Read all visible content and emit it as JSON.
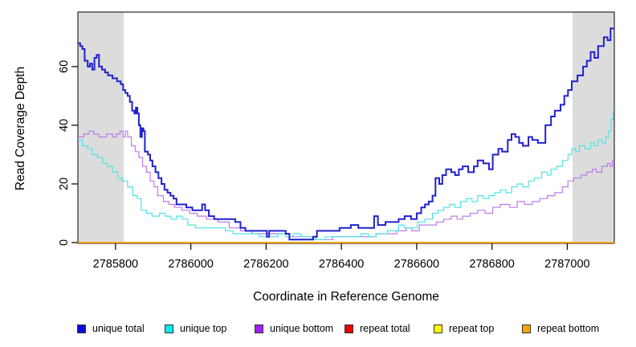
{
  "chart_data": {
    "type": "line",
    "subtype": "step",
    "title": "",
    "xlabel": "Coordinate in Reference Genome",
    "ylabel": "Read Coverage Depth",
    "xlim": [
      2785700,
      2787125
    ],
    "ylim": [
      0,
      78.6
    ],
    "xticks": [
      2785800,
      2786000,
      2786200,
      2786400,
      2786600,
      2786800,
      2787000
    ],
    "yticks": [
      0,
      20,
      40,
      60
    ],
    "grid": false,
    "legend_position": "bottom",
    "colors": {
      "background": "#FFFFFF",
      "frame": "#000000",
      "tick_text": "#000000",
      "shaded_band": "#DCDCDC"
    },
    "shaded_regions": [
      {
        "x0": 2785700,
        "x1": 2785822
      },
      {
        "x0": 2787014,
        "x1": 2787125
      }
    ],
    "series": [
      {
        "name": "unique total",
        "color": "#2121CE",
        "legend_color": "#0B0BDB",
        "width": 2,
        "points": [
          [
            2785700,
            68
          ],
          [
            2785706,
            67
          ],
          [
            2785712,
            66
          ],
          [
            2785718,
            62
          ],
          [
            2785726,
            60
          ],
          [
            2785732,
            61
          ],
          [
            2785738,
            59
          ],
          [
            2785744,
            63
          ],
          [
            2785750,
            64
          ],
          [
            2785756,
            60
          ],
          [
            2785764,
            59
          ],
          [
            2785772,
            58
          ],
          [
            2785780,
            57
          ],
          [
            2785792,
            56
          ],
          [
            2785804,
            55
          ],
          [
            2785814,
            54
          ],
          [
            2785820,
            52
          ],
          [
            2785826,
            51
          ],
          [
            2785832,
            50
          ],
          [
            2785838,
            48
          ],
          [
            2785844,
            45
          ],
          [
            2785850,
            44
          ],
          [
            2785854,
            46
          ],
          [
            2785858,
            44
          ],
          [
            2785862,
            40
          ],
          [
            2785866,
            36
          ],
          [
            2785870,
            39
          ],
          [
            2785874,
            38
          ],
          [
            2785878,
            31
          ],
          [
            2785886,
            30
          ],
          [
            2785892,
            28
          ],
          [
            2785898,
            26
          ],
          [
            2785906,
            24
          ],
          [
            2785914,
            22
          ],
          [
            2785922,
            20
          ],
          [
            2785930,
            18
          ],
          [
            2785938,
            17
          ],
          [
            2785946,
            16
          ],
          [
            2785954,
            15
          ],
          [
            2785962,
            13
          ],
          [
            2785988,
            12
          ],
          [
            2786004,
            11
          ],
          [
            2786030,
            13
          ],
          [
            2786038,
            11
          ],
          [
            2786048,
            9
          ],
          [
            2786062,
            8
          ],
          [
            2786118,
            7
          ],
          [
            2786132,
            5
          ],
          [
            2786145,
            4
          ],
          [
            2786196,
            4
          ],
          [
            2786202,
            2
          ],
          [
            2786208,
            4
          ],
          [
            2786252,
            3
          ],
          [
            2786262,
            1
          ],
          [
            2786325,
            2
          ],
          [
            2786335,
            4
          ],
          [
            2786395,
            5
          ],
          [
            2786425,
            6
          ],
          [
            2786445,
            5
          ],
          [
            2786470,
            5
          ],
          [
            2786487,
            9
          ],
          [
            2786497,
            6
          ],
          [
            2786517,
            7
          ],
          [
            2786552,
            8
          ],
          [
            2786568,
            9
          ],
          [
            2786585,
            8
          ],
          [
            2786600,
            10
          ],
          [
            2786612,
            12
          ],
          [
            2786622,
            13
          ],
          [
            2786632,
            14
          ],
          [
            2786642,
            16
          ],
          [
            2786650,
            22
          ],
          [
            2786660,
            20
          ],
          [
            2786668,
            23
          ],
          [
            2786678,
            25
          ],
          [
            2786692,
            24
          ],
          [
            2786702,
            23
          ],
          [
            2786712,
            25
          ],
          [
            2786722,
            26
          ],
          [
            2786737,
            24
          ],
          [
            2786752,
            26
          ],
          [
            2786762,
            28
          ],
          [
            2786777,
            27
          ],
          [
            2786792,
            25
          ],
          [
            2786802,
            30
          ],
          [
            2786817,
            32
          ],
          [
            2786827,
            31
          ],
          [
            2786842,
            35
          ],
          [
            2786852,
            37
          ],
          [
            2786862,
            36
          ],
          [
            2786872,
            34
          ],
          [
            2786882,
            33
          ],
          [
            2786897,
            36
          ],
          [
            2786907,
            35
          ],
          [
            2786922,
            34
          ],
          [
            2786942,
            40
          ],
          [
            2786957,
            43
          ],
          [
            2786967,
            45
          ],
          [
            2786982,
            47
          ],
          [
            2786992,
            50
          ],
          [
            2787002,
            52
          ],
          [
            2787012,
            55
          ],
          [
            2787027,
            57
          ],
          [
            2787042,
            60
          ],
          [
            2787052,
            62
          ],
          [
            2787062,
            65
          ],
          [
            2787072,
            63
          ],
          [
            2787082,
            67
          ],
          [
            2787097,
            70
          ],
          [
            2787107,
            69
          ],
          [
            2787115,
            73
          ],
          [
            2787125,
            73
          ]
        ]
      },
      {
        "name": "unique top",
        "color": "#4EE4E4",
        "legend_color": "#0EE8E8",
        "width": 1.2,
        "points": [
          [
            2785700,
            35
          ],
          [
            2785712,
            33
          ],
          [
            2785726,
            32
          ],
          [
            2785738,
            30
          ],
          [
            2785752,
            29
          ],
          [
            2785766,
            27
          ],
          [
            2785778,
            26
          ],
          [
            2785792,
            24
          ],
          [
            2785806,
            22
          ],
          [
            2785818,
            21
          ],
          [
            2785832,
            19
          ],
          [
            2785846,
            16
          ],
          [
            2785858,
            15
          ],
          [
            2785868,
            11
          ],
          [
            2785882,
            10
          ],
          [
            2785897,
            9
          ],
          [
            2785917,
            10
          ],
          [
            2785932,
            9
          ],
          [
            2785947,
            8
          ],
          [
            2785962,
            9
          ],
          [
            2785977,
            8
          ],
          [
            2785992,
            6
          ],
          [
            2786012,
            5
          ],
          [
            2786092,
            4
          ],
          [
            2786112,
            3
          ],
          [
            2786182,
            2
          ],
          [
            2786232,
            3
          ],
          [
            2786252,
            2
          ],
          [
            2786272,
            3
          ],
          [
            2786292,
            2
          ],
          [
            2786322,
            1
          ],
          [
            2786357,
            2
          ],
          [
            2786452,
            3
          ],
          [
            2786472,
            2
          ],
          [
            2786492,
            3
          ],
          [
            2786522,
            4
          ],
          [
            2786552,
            6
          ],
          [
            2786567,
            5
          ],
          [
            2786602,
            7
          ],
          [
            2786622,
            8
          ],
          [
            2786642,
            10
          ],
          [
            2786657,
            11
          ],
          [
            2786672,
            12
          ],
          [
            2786687,
            13
          ],
          [
            2786702,
            12
          ],
          [
            2786717,
            14
          ],
          [
            2786732,
            15
          ],
          [
            2786747,
            14
          ],
          [
            2786762,
            16
          ],
          [
            2786777,
            15
          ],
          [
            2786792,
            16
          ],
          [
            2786807,
            17
          ],
          [
            2786822,
            18
          ],
          [
            2786837,
            17
          ],
          [
            2786852,
            19
          ],
          [
            2786867,
            20
          ],
          [
            2786882,
            19
          ],
          [
            2786897,
            21
          ],
          [
            2786912,
            22
          ],
          [
            2786932,
            24
          ],
          [
            2786947,
            23
          ],
          [
            2786957,
            25
          ],
          [
            2786972,
            26
          ],
          [
            2786987,
            28
          ],
          [
            2787002,
            30
          ],
          [
            2787012,
            32
          ],
          [
            2787022,
            31
          ],
          [
            2787032,
            33
          ],
          [
            2787047,
            32
          ],
          [
            2787062,
            34
          ],
          [
            2787072,
            33
          ],
          [
            2787082,
            35
          ],
          [
            2787092,
            34
          ],
          [
            2787102,
            36
          ],
          [
            2787110,
            38
          ],
          [
            2787116,
            42
          ],
          [
            2787122,
            45
          ],
          [
            2787125,
            45
          ]
        ]
      },
      {
        "name": "unique bottom",
        "color": "#BE7BEA",
        "legend_color": "#A020F0",
        "width": 1.2,
        "points": [
          [
            2785700,
            36
          ],
          [
            2785716,
            37
          ],
          [
            2785730,
            38
          ],
          [
            2785742,
            37
          ],
          [
            2785756,
            36
          ],
          [
            2785776,
            37
          ],
          [
            2785792,
            36
          ],
          [
            2785802,
            37
          ],
          [
            2785812,
            38
          ],
          [
            2785820,
            36
          ],
          [
            2785826,
            38
          ],
          [
            2785832,
            36
          ],
          [
            2785842,
            33
          ],
          [
            2785852,
            31
          ],
          [
            2785862,
            29
          ],
          [
            2785872,
            26
          ],
          [
            2785882,
            24
          ],
          [
            2785892,
            21
          ],
          [
            2785902,
            19
          ],
          [
            2785912,
            16
          ],
          [
            2785927,
            14
          ],
          [
            2785942,
            13
          ],
          [
            2785957,
            12
          ],
          [
            2785977,
            11
          ],
          [
            2785997,
            10
          ],
          [
            2786017,
            9
          ],
          [
            2786042,
            8
          ],
          [
            2786072,
            7
          ],
          [
            2786102,
            5
          ],
          [
            2786132,
            4
          ],
          [
            2786162,
            3
          ],
          [
            2786262,
            2
          ],
          [
            2786332,
            1
          ],
          [
            2786377,
            2
          ],
          [
            2786492,
            3
          ],
          [
            2786547,
            4
          ],
          [
            2786572,
            5
          ],
          [
            2786587,
            4
          ],
          [
            2786607,
            6
          ],
          [
            2786652,
            7
          ],
          [
            2786672,
            8
          ],
          [
            2786692,
            9
          ],
          [
            2786707,
            8
          ],
          [
            2786722,
            9
          ],
          [
            2786742,
            10
          ],
          [
            2786762,
            11
          ],
          [
            2786782,
            10
          ],
          [
            2786802,
            12
          ],
          [
            2786822,
            13
          ],
          [
            2786847,
            12
          ],
          [
            2786867,
            14
          ],
          [
            2786887,
            13
          ],
          [
            2786907,
            14
          ],
          [
            2786927,
            15
          ],
          [
            2786947,
            16
          ],
          [
            2786967,
            17
          ],
          [
            2786987,
            19
          ],
          [
            2787002,
            21
          ],
          [
            2787017,
            22
          ],
          [
            2787037,
            23
          ],
          [
            2787052,
            24
          ],
          [
            2787067,
            25
          ],
          [
            2787077,
            24
          ],
          [
            2787092,
            26
          ],
          [
            2787107,
            27
          ],
          [
            2787114,
            26
          ],
          [
            2787120,
            28
          ],
          [
            2787125,
            28
          ]
        ]
      },
      {
        "name": "repeat total",
        "color": "#DD0000",
        "legend_color": "#EE0000",
        "width": 1.2,
        "points": [
          [
            2785700,
            0
          ],
          [
            2787125,
            0
          ]
        ]
      },
      {
        "name": "repeat top",
        "color": "#FFFF00",
        "legend_color": "#FFFF00",
        "width": 1.2,
        "points": [
          [
            2785700,
            0
          ],
          [
            2787125,
            0
          ]
        ]
      },
      {
        "name": "repeat bottom",
        "color": "#FFA500",
        "legend_color": "#FFA500",
        "width": 1.8,
        "points": [
          [
            2785700,
            0
          ],
          [
            2787125,
            0
          ]
        ]
      }
    ]
  }
}
